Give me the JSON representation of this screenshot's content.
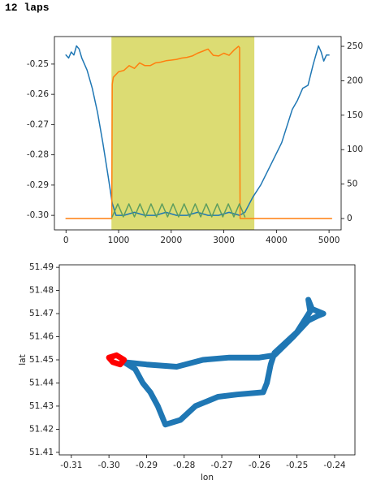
{
  "header": {
    "title": "12 laps"
  },
  "chart_data": [
    {
      "type": "line",
      "xlim": [
        -220,
        5230
      ],
      "ylim": [
        -0.3048,
        -0.2409
      ],
      "y2lim": [
        -16.5,
        264.2
      ],
      "xticks": [
        0,
        1000,
        2000,
        3000,
        4000,
        5000
      ],
      "yticks": [
        -0.25,
        -0.26,
        -0.27,
        -0.28,
        -0.29,
        {
          "value": -0.3,
          "label": "-0.30"
        }
      ],
      "y2ticks": [
        0,
        50,
        100,
        150,
        200,
        250
      ],
      "span": [
        864,
        3580
      ],
      "span_color": "#bfbf00",
      "series": [
        {
          "color": "#1f77b4",
          "x": [
            0,
            50,
            100,
            150,
            200,
            250,
            300,
            400,
            500,
            600,
            700,
            800,
            880,
            950,
            1100,
            1300,
            1500,
            1700,
            1900,
            2100,
            2300,
            2500,
            2700,
            2900,
            3100,
            3300,
            3400,
            3550,
            3700,
            3900,
            4100,
            4300,
            4400,
            4500,
            4600,
            4700,
            4800,
            4850,
            4900,
            4950,
            5000
          ],
          "values": [
            -0.247,
            -0.248,
            -0.246,
            -0.247,
            -0.244,
            -0.245,
            -0.248,
            -0.252,
            -0.258,
            -0.266,
            -0.276,
            -0.287,
            -0.296,
            -0.3,
            -0.3,
            -0.299,
            -0.3,
            -0.3,
            -0.299,
            -0.3,
            -0.3,
            -0.299,
            -0.3,
            -0.3,
            -0.299,
            -0.3,
            -0.299,
            -0.294,
            -0.29,
            -0.283,
            -0.276,
            -0.265,
            -0.262,
            -0.258,
            -0.257,
            -0.25,
            -0.244,
            -0.246,
            -0.249,
            -0.247,
            -0.247
          ]
        },
        {
          "color": "#ff7f0e",
          "axis": "y2",
          "x": [
            0,
            870,
            880,
            900,
            1000,
            1100,
            1200,
            1300,
            1400,
            1500,
            1600,
            1700,
            1800,
            1900,
            2000,
            2100,
            2200,
            2300,
            2400,
            2500,
            2600,
            2700,
            2800,
            2900,
            3000,
            3100,
            3200,
            3280,
            3300,
            3310,
            5050
          ],
          "values": [
            0,
            0,
            195,
            205,
            213,
            215,
            222,
            218,
            226,
            222,
            222,
            226,
            227,
            229,
            230,
            231,
            233,
            234,
            236,
            240,
            243,
            246,
            237,
            236,
            240,
            237,
            245,
            250,
            248,
            0,
            0
          ]
        },
        {
          "color": "#5e9e5e",
          "x": [
            880,
            985,
            1090,
            1195,
            1300,
            1405,
            1510,
            1615,
            1720,
            1825,
            1930,
            2035,
            2140,
            2245,
            2350,
            2455,
            2560,
            2665,
            2770,
            2875,
            2980,
            3085,
            3190,
            3295,
            3400
          ],
          "values": [
            -0.3005,
            -0.2962,
            -0.3005,
            -0.2962,
            -0.3005,
            -0.2962,
            -0.3005,
            -0.2962,
            -0.3005,
            -0.2962,
            -0.3005,
            -0.2962,
            -0.3005,
            -0.2962,
            -0.3005,
            -0.2962,
            -0.3005,
            -0.2962,
            -0.3005,
            -0.2962,
            -0.3005,
            -0.2962,
            -0.3005,
            -0.2962,
            -0.3005
          ]
        }
      ]
    },
    {
      "type": "track",
      "xlabel": "lon",
      "ylabel": "lat",
      "xlim": [
        -0.3132,
        -0.2346
      ],
      "ylim": [
        51.4089,
        51.4911
      ],
      "xticks": [
        -0.31,
        {
          "value": -0.3,
          "label": "-0.30"
        },
        -0.29,
        -0.28,
        -0.27,
        -0.26,
        -0.25,
        -0.24
      ],
      "yticks": [
        51.41,
        51.42,
        51.43,
        51.44,
        51.45,
        51.46,
        51.47,
        51.48,
        51.49
      ],
      "series": [
        {
          "color": "#1f77b4",
          "x": [
            -0.296,
            -0.29,
            -0.282,
            -0.275,
            -0.268,
            -0.26,
            -0.256,
            -0.251,
            -0.247,
            -0.2445,
            -0.243,
            -0.246,
            -0.247,
            -0.2465,
            -0.25,
            -0.256,
            -0.257,
            -0.258,
            -0.259,
            -0.266,
            -0.271,
            -0.277,
            -0.281,
            -0.285,
            -0.287,
            -0.289,
            -0.291,
            -0.293,
            -0.296
          ],
          "values": [
            51.449,
            51.448,
            51.447,
            51.45,
            51.451,
            51.451,
            51.452,
            51.46,
            51.467,
            51.469,
            51.47,
            51.472,
            51.476,
            51.471,
            51.462,
            51.453,
            51.448,
            51.44,
            51.436,
            51.435,
            51.434,
            51.43,
            51.424,
            51.422,
            51.43,
            51.436,
            51.44,
            51.446,
            51.449
          ]
        },
        {
          "color": "#ff0000",
          "x": [
            -0.3,
            -0.298,
            -0.296,
            -0.297,
            -0.299,
            -0.3
          ],
          "values": [
            51.451,
            51.452,
            51.45,
            51.448,
            51.449,
            51.451
          ]
        }
      ]
    }
  ]
}
